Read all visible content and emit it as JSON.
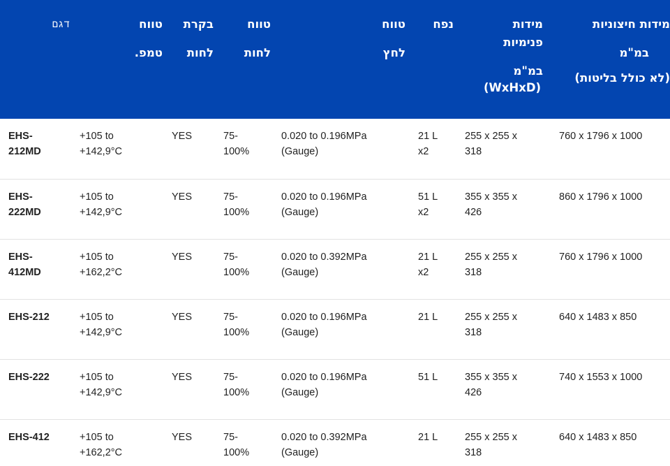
{
  "colors": {
    "header_bg": "#0345b0",
    "header_text": "#ffffff",
    "row_divider": "#e2e2e2",
    "body_text": "#222222"
  },
  "headers": {
    "model": [
      "דגם"
    ],
    "temp_range": [
      "טווח",
      "טמפ."
    ],
    "humidity_control": [
      "בקרת",
      "לחות"
    ],
    "humidity_range": [
      "טווח",
      "לחות"
    ],
    "pressure_range": [
      "טווח",
      "לחץ"
    ],
    "volume": [
      "נפח"
    ],
    "internal_dims": [
      "מידות",
      "פנימיות",
      "במ\"מ",
      "(WxHxD)"
    ],
    "external_dims": [
      "מידות חיצוניות",
      "במ\"מ",
      "(לא כולל בליטות)"
    ]
  },
  "rows": [
    {
      "model": [
        "EHS-",
        "212MD"
      ],
      "temp": [
        "+105 to",
        "+142,9°C"
      ],
      "humidity_control": [
        "YES"
      ],
      "humidity_range": [
        "75-",
        "100%"
      ],
      "pressure": [
        "0.020 to 0.196MPa",
        "(Gauge)"
      ],
      "volume": [
        "21 L",
        "x2"
      ],
      "internal_dims": [
        "255 x 255 x",
        "318"
      ],
      "external_dims": [
        "760 x 1796 x 1000"
      ]
    },
    {
      "model": [
        "EHS-",
        "222MD"
      ],
      "temp": [
        "+105 to",
        "+142,9°C"
      ],
      "humidity_control": [
        "YES"
      ],
      "humidity_range": [
        "75-",
        "100%"
      ],
      "pressure": [
        "0.020 to 0.196MPa",
        "(Gauge)"
      ],
      "volume": [
        "51 L",
        "x2"
      ],
      "internal_dims": [
        "355 x 355 x",
        "426"
      ],
      "external_dims": [
        "860 x 1796 x 1000"
      ]
    },
    {
      "model": [
        "EHS-",
        "412MD"
      ],
      "temp": [
        "+105 to",
        "+162,2°C"
      ],
      "humidity_control": [
        "YES"
      ],
      "humidity_range": [
        "75-",
        "100%"
      ],
      "pressure": [
        "0.020 to 0.392MPa",
        "(Gauge)"
      ],
      "volume": [
        "21 L",
        "x2"
      ],
      "internal_dims": [
        "255 x 255 x",
        "318"
      ],
      "external_dims": [
        "760 x 1796 x 1000"
      ]
    },
    {
      "model": [
        "EHS-212"
      ],
      "temp": [
        "+105 to",
        "+142,9°C"
      ],
      "humidity_control": [
        "YES"
      ],
      "humidity_range": [
        "75-",
        "100%"
      ],
      "pressure": [
        "0.020 to 0.196MPa",
        "(Gauge)"
      ],
      "volume": [
        "21 L"
      ],
      "internal_dims": [
        "255 x 255 x",
        "318"
      ],
      "external_dims": [
        "640 x 1483 x 850"
      ]
    },
    {
      "model": [
        "EHS-222"
      ],
      "temp": [
        "+105 to",
        "+142,9°C"
      ],
      "humidity_control": [
        "YES"
      ],
      "humidity_range": [
        "75-",
        "100%"
      ],
      "pressure": [
        "0.020 to 0.196MPa",
        "(Gauge)"
      ],
      "volume": [
        "51 L"
      ],
      "internal_dims": [
        "355 x 355 x",
        "426"
      ],
      "external_dims": [
        "740 x 1553 x 1000"
      ]
    },
    {
      "model": [
        "EHS-412"
      ],
      "temp": [
        "+105 to",
        "+162,2°C"
      ],
      "humidity_control": [
        "YES"
      ],
      "humidity_range": [
        "75-",
        "100%"
      ],
      "pressure": [
        "0.020 to 0.392MPa",
        "(Gauge)"
      ],
      "volume": [
        "21 L"
      ],
      "internal_dims": [
        "255 x 255 x",
        "318"
      ],
      "external_dims": [
        "640 x 1483 x 850"
      ]
    }
  ]
}
